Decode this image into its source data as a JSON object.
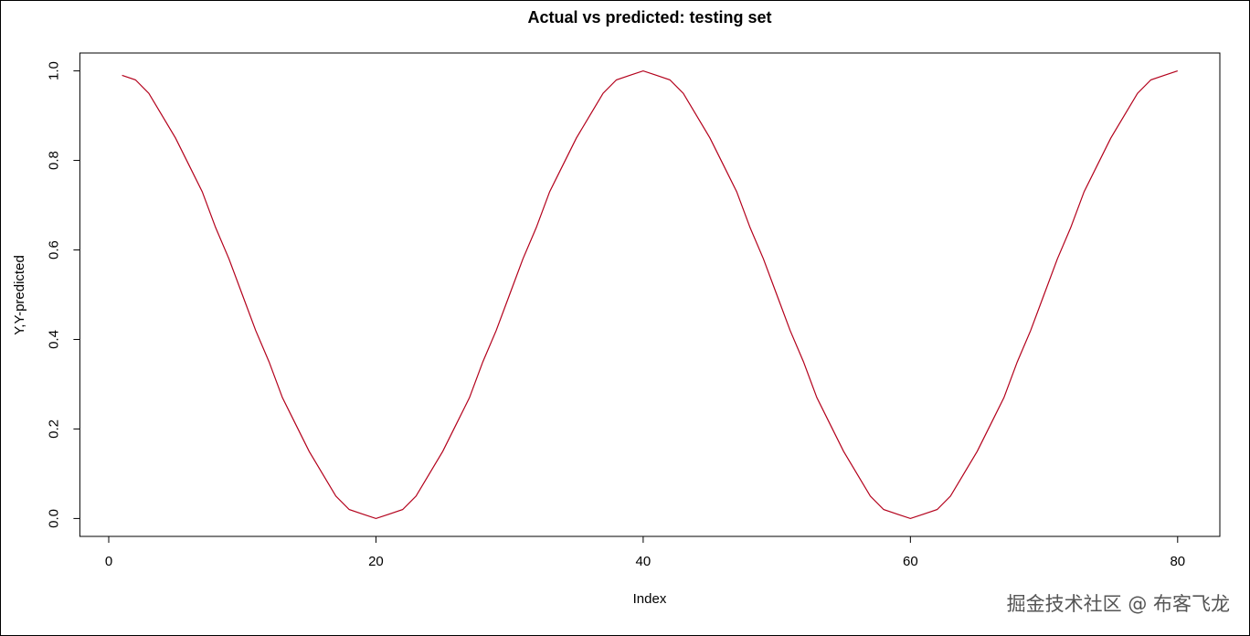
{
  "chart_data": {
    "type": "line",
    "title": "Actual vs predicted: testing set",
    "x_label": "Index",
    "y_label": "Y,Y-predicted",
    "x": [
      1,
      2,
      3,
      4,
      5,
      6,
      7,
      8,
      9,
      10,
      11,
      12,
      13,
      14,
      15,
      16,
      17,
      18,
      19,
      20,
      21,
      22,
      23,
      24,
      25,
      26,
      27,
      28,
      29,
      30,
      31,
      32,
      33,
      34,
      35,
      36,
      37,
      38,
      39,
      40,
      41,
      42,
      43,
      44,
      45,
      46,
      47,
      48,
      49,
      50,
      51,
      52,
      53,
      54,
      55,
      56,
      57,
      58,
      59,
      60,
      61,
      62,
      63,
      64,
      65,
      66,
      67,
      68,
      69,
      70,
      71,
      72,
      73,
      74,
      75,
      76,
      77,
      78,
      79,
      80
    ],
    "series": [
      {
        "color": "#b3001b",
        "values": [
          0.99,
          0.98,
          0.95,
          0.9,
          0.85,
          0.79,
          0.73,
          0.65,
          0.58,
          0.5,
          0.42,
          0.35,
          0.27,
          0.21,
          0.15,
          0.1,
          0.05,
          0.02,
          0.01,
          0,
          0.01,
          0.02,
          0.05,
          0.1,
          0.15,
          0.21,
          0.27,
          0.35,
          0.42,
          0.5,
          0.58,
          0.65,
          0.73,
          0.79,
          0.85,
          0.9,
          0.95,
          0.98,
          0.99,
          1,
          0.99,
          0.98,
          0.95,
          0.9,
          0.85,
          0.79,
          0.73,
          0.65,
          0.58,
          0.5,
          0.42,
          0.35,
          0.27,
          0.21,
          0.15,
          0.1,
          0.05,
          0.02,
          0.01,
          0,
          0.01,
          0.02,
          0.05,
          0.1,
          0.15,
          0.21,
          0.27,
          0.35,
          0.42,
          0.5,
          0.58,
          0.65,
          0.73,
          0.79,
          0.85,
          0.9,
          0.95,
          0.98,
          0.99,
          1
        ]
      }
    ],
    "xlim": [
      -2.16,
      83.16
    ],
    "ylim": [
      -0.04,
      1.04
    ],
    "xticks": [
      0,
      20,
      40,
      60,
      80
    ],
    "yticks": [
      {
        "value": 0,
        "label": "0.0"
      },
      0.2,
      0.4,
      0.6,
      0.8,
      {
        "value": 1,
        "label": "1.0"
      }
    ],
    "watermark": "掘金技术社区 @ 布客飞龙"
  }
}
